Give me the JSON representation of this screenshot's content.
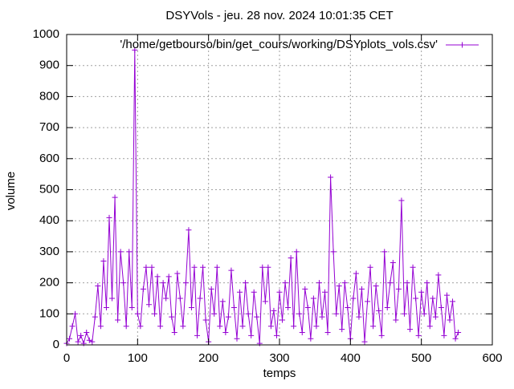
{
  "chart_data": {
    "type": "line",
    "title": "DSYVols - jeu. 28 nov. 2024 10:01:35 CET",
    "x_label": "temps",
    "y_label": "volume",
    "xlim": [
      0,
      600
    ],
    "xticks": [
      0,
      100,
      200,
      300,
      400,
      500,
      600
    ],
    "ylim": [
      0,
      1000
    ],
    "yticks": [
      0,
      100,
      200,
      300,
      400,
      500,
      600,
      700,
      800,
      900,
      1000
    ],
    "grid": true,
    "legend": "top-right",
    "series": [
      {
        "name": "'/home/getbourso/bin/get_cours/working/DSYplots_vols.csv'",
        "color": "#9400d3",
        "x": [
          0,
          4,
          8,
          12,
          16,
          20,
          24,
          28,
          32,
          36,
          40,
          44,
          48,
          52,
          56,
          60,
          64,
          68,
          72,
          76,
          80,
          84,
          88,
          92,
          96,
          100,
          104,
          108,
          112,
          116,
          120,
          124,
          128,
          132,
          136,
          140,
          144,
          148,
          152,
          156,
          160,
          164,
          168,
          172,
          176,
          180,
          184,
          188,
          192,
          196,
          200,
          204,
          208,
          212,
          216,
          220,
          224,
          228,
          232,
          236,
          240,
          244,
          248,
          252,
          256,
          260,
          264,
          268,
          272,
          276,
          280,
          284,
          288,
          292,
          296,
          300,
          304,
          308,
          312,
          316,
          320,
          324,
          328,
          332,
          336,
          340,
          344,
          348,
          352,
          356,
          360,
          364,
          368,
          372,
          376,
          380,
          384,
          388,
          392,
          396,
          400,
          404,
          408,
          412,
          416,
          420,
          424,
          428,
          432,
          436,
          440,
          444,
          448,
          452,
          456,
          460,
          464,
          468,
          472,
          476,
          480,
          484,
          488,
          492,
          496,
          500,
          504,
          508,
          512,
          516,
          520,
          524,
          528,
          532,
          536,
          540,
          544,
          548,
          552
        ],
        "values": [
          5,
          20,
          60,
          100,
          10,
          30,
          5,
          40,
          15,
          10,
          90,
          190,
          60,
          270,
          120,
          410,
          150,
          475,
          80,
          300,
          200,
          60,
          300,
          120,
          950,
          100,
          60,
          180,
          250,
          130,
          250,
          100,
          220,
          60,
          200,
          150,
          220,
          90,
          40,
          230,
          150,
          60,
          200,
          370,
          120,
          250,
          30,
          150,
          250,
          80,
          10,
          180,
          100,
          250,
          60,
          140,
          40,
          90,
          240,
          120,
          20,
          170,
          60,
          200,
          100,
          30,
          170,
          90,
          5,
          250,
          140,
          250,
          60,
          110,
          30,
          170,
          80,
          200,
          120,
          280,
          60,
          300,
          100,
          40,
          180,
          120,
          20,
          150,
          60,
          200,
          90,
          170,
          40,
          540,
          300,
          100,
          190,
          50,
          200,
          120,
          20,
          150,
          230,
          90,
          180,
          10,
          140,
          250,
          60,
          190,
          110,
          30,
          300,
          120,
          200,
          265,
          80,
          180,
          465,
          100,
          200,
          50,
          250,
          150,
          30,
          170,
          100,
          200,
          60,
          150,
          90,
          225,
          120,
          30,
          160,
          80,
          140,
          20,
          40
        ]
      }
    ]
  }
}
